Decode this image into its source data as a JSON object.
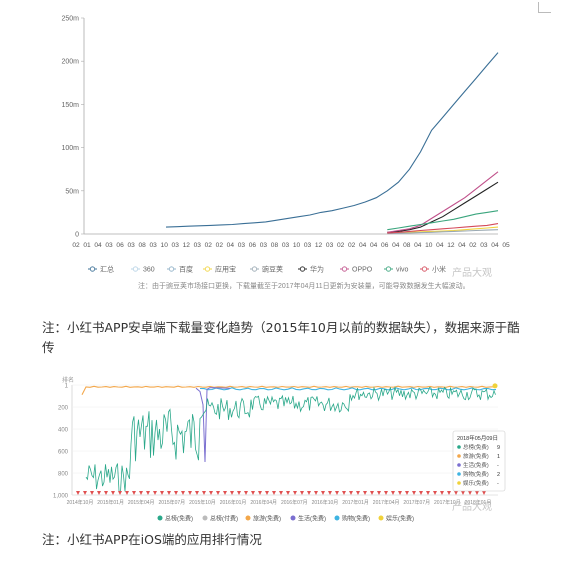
{
  "chart_data": [
    {
      "type": "line",
      "title": "",
      "xlabel": "",
      "ylabel": "",
      "ylim": [
        0,
        250000000
      ],
      "y_tick_labels": [
        "0",
        "50m",
        "100m",
        "150m",
        "200m",
        "250m"
      ],
      "x_tick_labels": [
        "02",
        "01",
        "04",
        "03",
        "06",
        "03",
        "08",
        "03",
        "10",
        "03",
        "12",
        "03",
        "02",
        "02",
        "04",
        "03",
        "06",
        "03",
        "08",
        "03",
        "10",
        "03",
        "12",
        "03",
        "02",
        "02",
        "04",
        "04",
        "06",
        "04",
        "08",
        "04",
        "10",
        "04",
        "12",
        "04",
        "02",
        "03",
        "04",
        "05"
      ],
      "legend_position": "bottom",
      "series": [
        {
          "name": "汇总",
          "color": "#3a6f96",
          "values": [
            8,
            8.5,
            9,
            9.5,
            10,
            10.5,
            11,
            12,
            13,
            14,
            16,
            18,
            20,
            22,
            25,
            27,
            30,
            33,
            37,
            42,
            50,
            60,
            75,
            95,
            120,
            135,
            150,
            165,
            180,
            195,
            210
          ]
        },
        {
          "name": "360",
          "color": "#b7d3e6",
          "values": [
            null,
            null,
            null,
            null,
            null,
            null,
            null,
            null,
            null,
            null,
            null,
            null,
            null,
            null,
            null,
            null,
            null,
            null,
            null,
            null,
            null,
            null,
            null,
            null,
            null,
            null,
            null,
            null,
            null,
            null,
            null
          ]
        },
        {
          "name": "百度",
          "color": "#8fb0c7",
          "values": [
            null,
            null,
            null,
            null,
            null,
            null,
            null,
            null,
            null,
            null,
            null,
            null,
            null,
            null,
            null,
            null,
            null,
            null,
            null,
            null,
            null,
            null,
            null,
            null,
            null,
            null,
            null,
            null,
            null,
            null,
            null
          ]
        },
        {
          "name": "应用宝",
          "color": "#f1d43f",
          "values": [
            null,
            null,
            null,
            null,
            null,
            null,
            null,
            null,
            null,
            null,
            null,
            null,
            null,
            null,
            null,
            null,
            null,
            null,
            null,
            null,
            1,
            1.5,
            2,
            2.5,
            3,
            3.5,
            4,
            5,
            6,
            7,
            8
          ]
        },
        {
          "name": "豌豆荚",
          "color": "#9aa9b3",
          "values": [
            null,
            null,
            null,
            null,
            null,
            null,
            null,
            null,
            null,
            null,
            null,
            null,
            null,
            null,
            null,
            null,
            null,
            null,
            null,
            null,
            0.5,
            0.8,
            1.2,
            1.6,
            2,
            2.5,
            3,
            3.5,
            4,
            4.5,
            5
          ]
        },
        {
          "name": "华为",
          "color": "#222222",
          "values": [
            null,
            null,
            null,
            null,
            null,
            null,
            null,
            null,
            null,
            null,
            null,
            null,
            null,
            null,
            null,
            null,
            null,
            null,
            null,
            null,
            2,
            3,
            5,
            8,
            14,
            20,
            28,
            36,
            44,
            52,
            60
          ]
        },
        {
          "name": "OPPO",
          "color": "#c0508a",
          "values": [
            null,
            null,
            null,
            null,
            null,
            null,
            null,
            null,
            null,
            null,
            null,
            null,
            null,
            null,
            null,
            null,
            null,
            null,
            null,
            null,
            2,
            4,
            6,
            10,
            18,
            26,
            34,
            42,
            52,
            62,
            72
          ]
        },
        {
          "name": "vivo",
          "color": "#3aa57d",
          "values": [
            null,
            null,
            null,
            null,
            null,
            null,
            null,
            null,
            null,
            null,
            null,
            null,
            null,
            null,
            null,
            null,
            null,
            null,
            null,
            null,
            5,
            7,
            9,
            11,
            13,
            15,
            17,
            20,
            23,
            25,
            27
          ]
        },
        {
          "name": "小米",
          "color": "#d44a5a",
          "values": [
            null,
            null,
            null,
            null,
            null,
            null,
            null,
            null,
            null,
            null,
            null,
            null,
            null,
            null,
            null,
            null,
            null,
            null,
            null,
            null,
            1,
            2,
            3,
            4,
            5,
            6,
            7,
            8,
            9,
            10,
            12
          ]
        }
      ]
    },
    {
      "type": "line",
      "title": "",
      "ylabel": "排名",
      "xlabel": "",
      "ylim": [
        1,
        1000
      ],
      "y_tick_labels": [
        "1",
        "200",
        "400",
        "600",
        "800",
        "1,000"
      ],
      "x_tick_labels": [
        "2014年10月",
        "2015年01月",
        "2015年04月",
        "2015年07月",
        "2015年10月",
        "2016年01月",
        "2016年04月",
        "2016年07月",
        "2016年10月",
        "2017年01月",
        "2017年04月",
        "2017年07月",
        "2017年10月",
        "2018年01月"
      ],
      "legend_position": "bottom",
      "series": [
        {
          "name": "总榜(免费)",
          "color": "#2aa88a"
        },
        {
          "name": "总榜(付费)",
          "color": "#bbbbbb"
        },
        {
          "name": "旅游(免费)",
          "color": "#f3a74a"
        },
        {
          "name": "生活(免费)",
          "color": "#7b6fd0"
        },
        {
          "name": "购物(免费)",
          "color": "#3fb4e2"
        },
        {
          "name": "娱乐(免费)",
          "color": "#f0d23a"
        }
      ],
      "tooltip": {
        "date": "2018年05月09日",
        "rows": [
          {
            "label": "总榜(免费)",
            "value": "9"
          },
          {
            "label": "旅游(免费)",
            "value": "1"
          },
          {
            "label": "生活(免费)",
            "value": "-"
          },
          {
            "label": "购物(免费)",
            "value": "2"
          },
          {
            "label": "娱乐(免费)",
            "value": "-"
          }
        ]
      }
    }
  ],
  "watermarks": {
    "brand": "产品大观"
  },
  "captions": {
    "first": "注：小红书APP安卓端下载量变化趋势（2015年10月以前的数据缺失），数据来源于酷传",
    "second": "注：小红书APP在iOS端的应用排行情况"
  },
  "footnote": "注：由于豌豆荚市场接口更换，下载量截至于2017年04月11日更新为安装量，可能导致数据发生大幅波动。"
}
